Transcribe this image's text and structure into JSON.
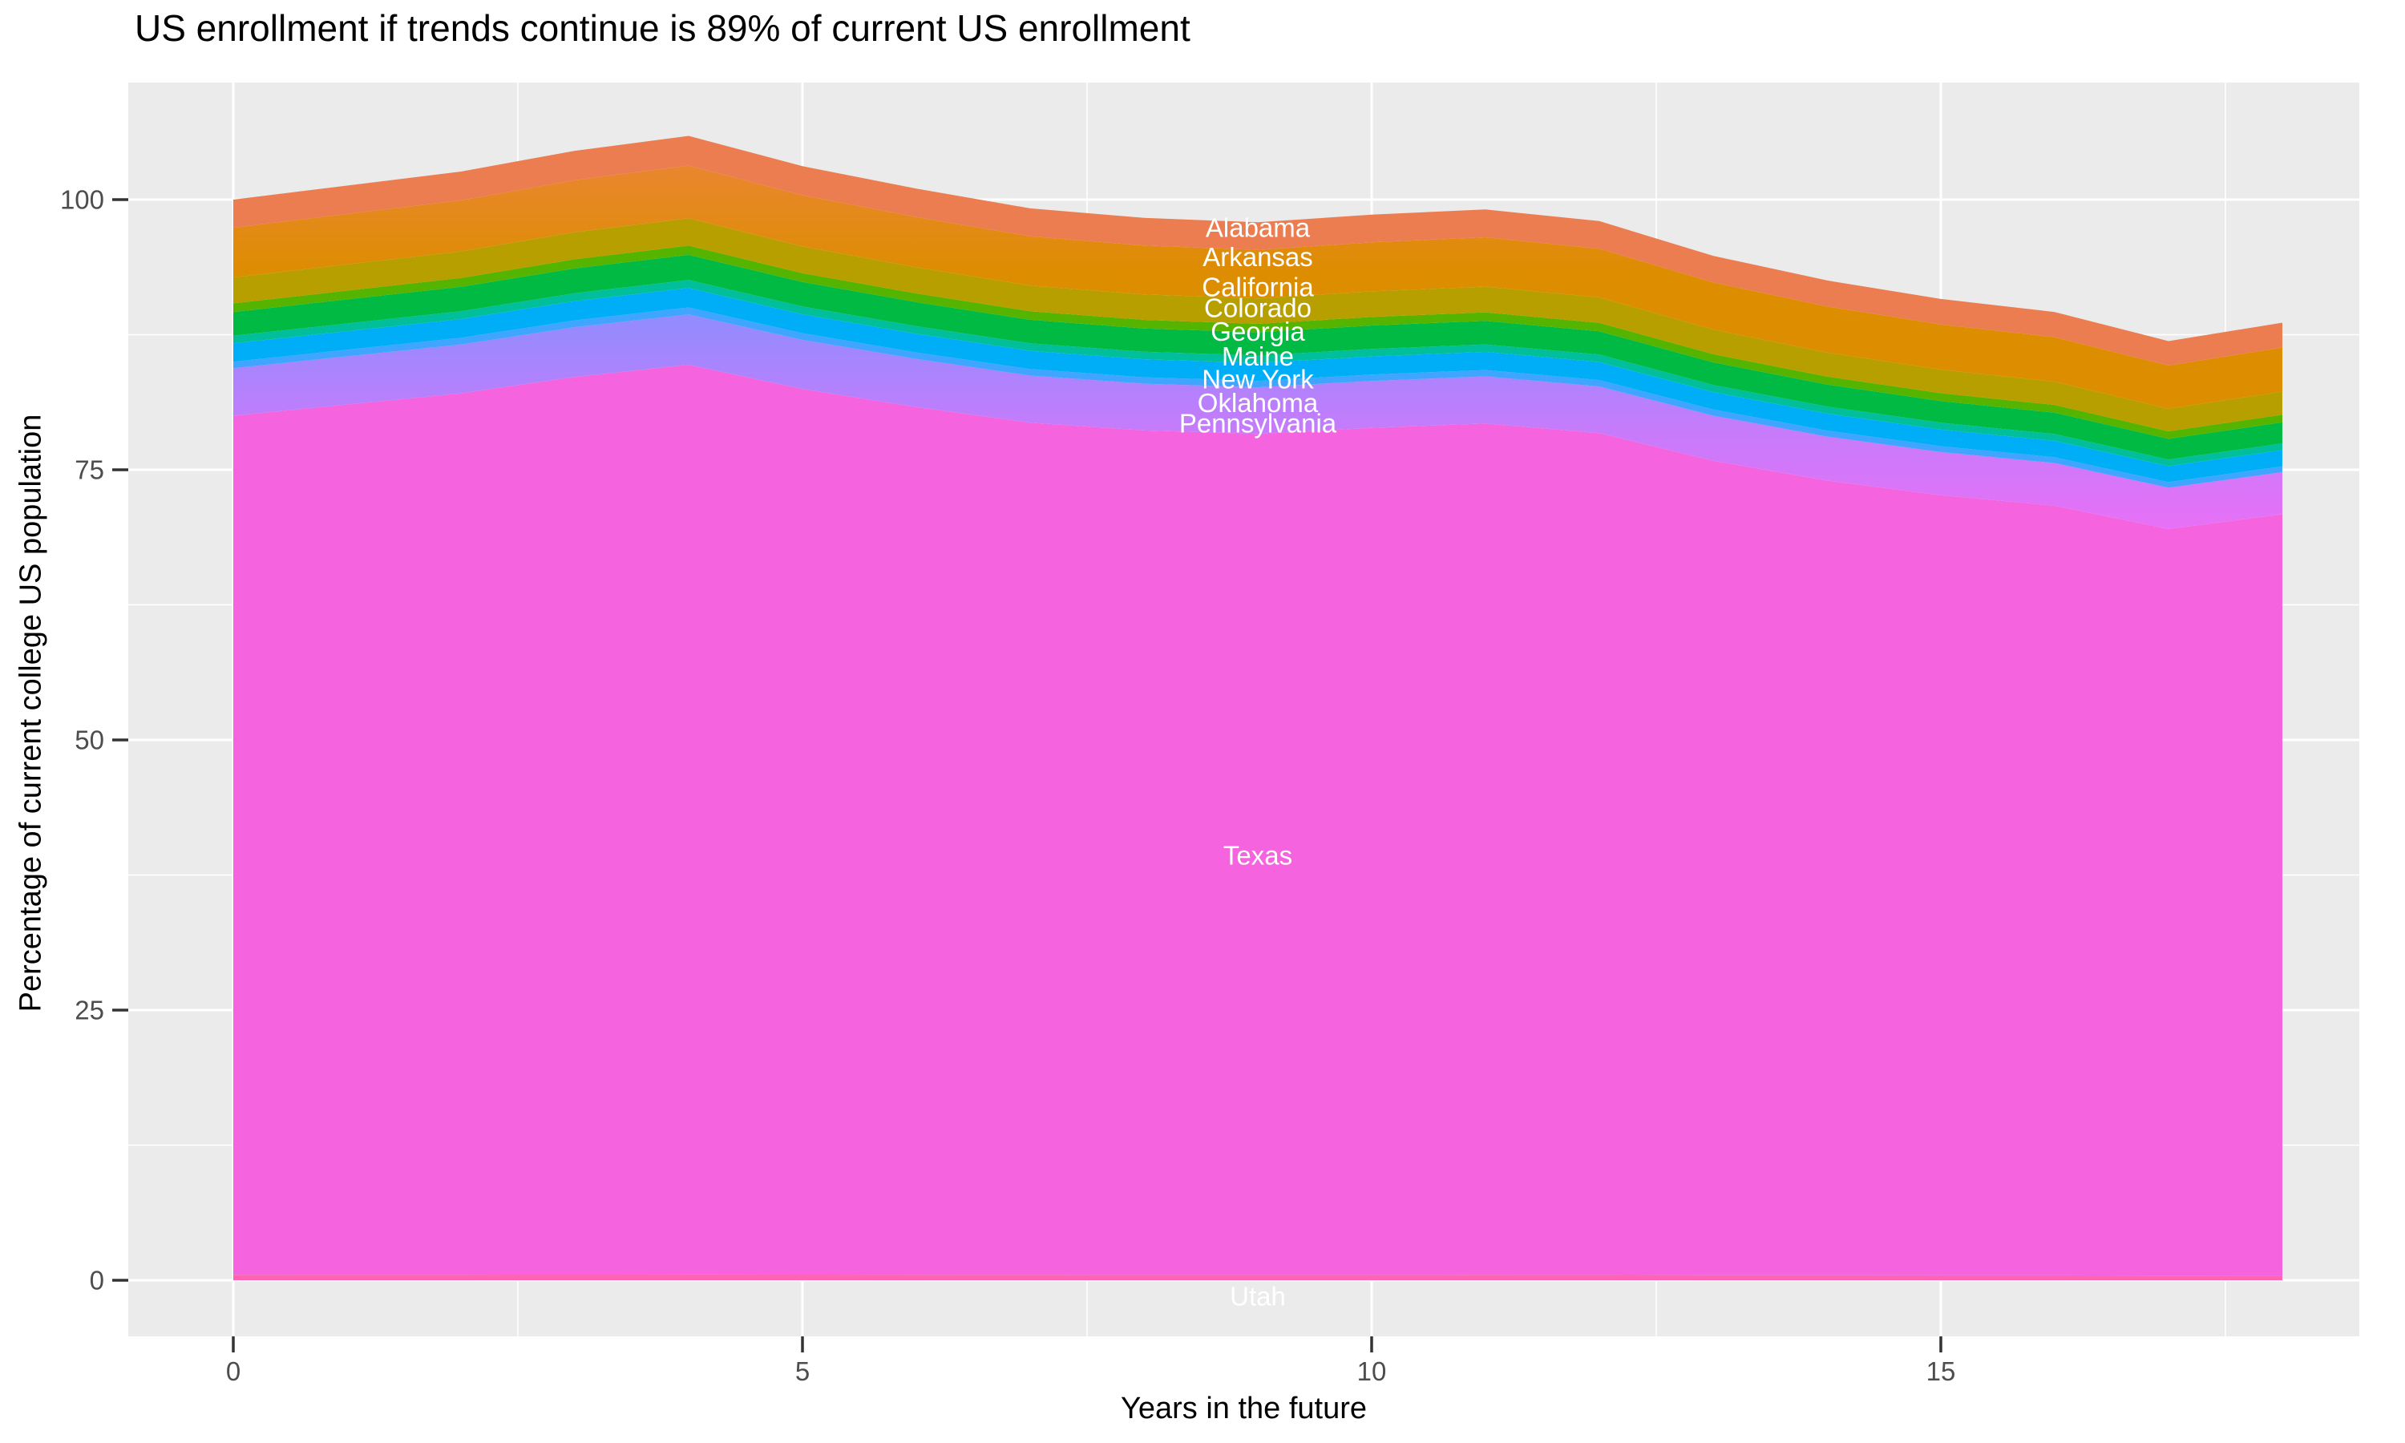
{
  "title": "US enrollment if trends continue is 89% of current US enrollment",
  "axes": {
    "x_title": "Years in the future",
    "y_title": "Percentage of current college US population"
  },
  "colors": {
    "panel_background": "#EBEBEB",
    "gridline": "#FFFFFF",
    "tick_mark": "#333333",
    "axis_text": "#4D4D4D",
    "title_text": "#000000",
    "state_label_text": "#FFFFFF"
  },
  "chart_data": {
    "type": "area",
    "stacked": true,
    "title": "US enrollment if trends continue is 89% of current US enrollment",
    "xlabel": "Years in the future",
    "ylabel": "Percentage of current college US population",
    "x": [
      0,
      1,
      2,
      3,
      4,
      5,
      6,
      7,
      8,
      9,
      10,
      11,
      12,
      13,
      14,
      15,
      16,
      17,
      18
    ],
    "x_ticks": [
      0,
      5,
      10,
      15
    ],
    "x_tick_labels": [
      "0",
      "5",
      "10",
      "15"
    ],
    "x_minor_ticks": [
      2.5,
      7.5,
      12.5,
      17.5
    ],
    "y_ticks": [
      0,
      25,
      50,
      75,
      100
    ],
    "y_tick_labels": [
      "0",
      "25",
      "50",
      "75",
      "100"
    ],
    "y_minor_ticks": [
      12.5,
      37.5,
      62.5,
      87.5
    ],
    "xlim": [
      -0.92,
      18.68
    ],
    "ylim": [
      -5.2,
      110.8
    ],
    "grid": "on",
    "legend_position": "none",
    "total_pct_of_current": [
      100,
      101.3,
      102.6,
      104.5,
      105.9,
      103.1,
      101.0,
      99.2,
      98.3,
      97.9,
      98.6,
      99.1,
      98.0,
      94.8,
      92.5,
      90.8,
      89.6,
      86.9,
      88.6
    ],
    "stack_order_bottom_to_top": [
      "Utah",
      "Texas",
      "Pennsylvania",
      "Oklahoma",
      "New York",
      "Maine",
      "Georgia",
      "Colorado",
      "California",
      "Arkansas",
      "Alabama"
    ],
    "series": [
      {
        "name": "Alabama",
        "share_pct": 2.6,
        "fill": {
          "type": "solid",
          "color": "#EB7D50"
        },
        "values": [
          2.6,
          2.63,
          2.67,
          2.72,
          2.75,
          2.68,
          2.63,
          2.58,
          2.56,
          2.55,
          2.56,
          2.58,
          2.55,
          2.46,
          2.41,
          2.36,
          2.33,
          2.26,
          2.3
        ]
      },
      {
        "name": "Arkansas",
        "share_pct": 4.6,
        "fill": {
          "type": "gradient",
          "stops": [
            [
              "0%",
              "#E9862F"
            ],
            [
              "45%",
              "#DD8D00"
            ],
            [
              "100%",
              "#DC8D00"
            ]
          ]
        },
        "values": [
          4.6,
          4.66,
          4.72,
          4.81,
          4.87,
          4.74,
          4.65,
          4.56,
          4.52,
          4.5,
          4.54,
          4.56,
          4.51,
          4.36,
          4.26,
          4.18,
          4.12,
          4.0,
          4.08
        ]
      },
      {
        "name": "California",
        "share_pct": 2.4,
        "fill": {
          "type": "solid",
          "color": "#B79F00"
        },
        "values": [
          2.4,
          2.43,
          2.46,
          2.51,
          2.54,
          2.47,
          2.42,
          2.38,
          2.36,
          2.35,
          2.37,
          2.38,
          2.35,
          2.28,
          2.22,
          2.18,
          2.15,
          2.09,
          2.13
        ]
      },
      {
        "name": "Colorado",
        "share_pct": 0.8,
        "fill": {
          "type": "solid",
          "color": "#55B400"
        },
        "values": [
          0.8,
          0.81,
          0.82,
          0.84,
          0.85,
          0.82,
          0.81,
          0.79,
          0.79,
          0.78,
          0.79,
          0.79,
          0.78,
          0.76,
          0.74,
          0.73,
          0.72,
          0.7,
          0.71
        ]
      },
      {
        "name": "Georgia",
        "share_pct": 2.2,
        "fill": {
          "type": "solid",
          "color": "#00BA43"
        },
        "values": [
          2.2,
          2.23,
          2.26,
          2.3,
          2.33,
          2.27,
          2.22,
          2.18,
          2.16,
          2.15,
          2.17,
          2.18,
          2.16,
          2.09,
          2.04,
          2.0,
          1.97,
          1.91,
          1.95
        ]
      },
      {
        "name": "Maine",
        "share_pct": 0.7,
        "fill": {
          "type": "solid",
          "color": "#00BF9A"
        },
        "values": [
          0.7,
          0.71,
          0.72,
          0.73,
          0.74,
          0.72,
          0.71,
          0.69,
          0.69,
          0.69,
          0.69,
          0.69,
          0.69,
          0.66,
          0.65,
          0.64,
          0.63,
          0.61,
          0.62
        ]
      },
      {
        "name": "New York",
        "share_pct": 1.7,
        "fill": {
          "type": "solid",
          "color": "#00AEF8"
        },
        "values": [
          1.7,
          1.72,
          1.74,
          1.78,
          1.8,
          1.75,
          1.72,
          1.69,
          1.67,
          1.66,
          1.68,
          1.68,
          1.67,
          1.61,
          1.57,
          1.54,
          1.52,
          1.48,
          1.51
        ]
      },
      {
        "name": "Oklahoma",
        "share_pct": 0.6,
        "fill": {
          "type": "solid",
          "color": "#3FA5FF"
        },
        "values": [
          0.6,
          0.61,
          0.62,
          0.63,
          0.64,
          0.62,
          0.61,
          0.6,
          0.59,
          0.59,
          0.59,
          0.59,
          0.59,
          0.57,
          0.56,
          0.54,
          0.54,
          0.52,
          0.53
        ]
      },
      {
        "name": "Pennsylvania",
        "share_pct": 4.4,
        "fill": {
          "type": "gradient",
          "stops": [
            [
              "0%",
              "#918CFF"
            ],
            [
              "55%",
              "#C77BFB"
            ],
            [
              "100%",
              "#E770F6"
            ]
          ]
        },
        "values": [
          4.4,
          4.46,
          4.51,
          4.6,
          4.66,
          4.54,
          4.44,
          4.36,
          4.33,
          4.31,
          4.34,
          4.36,
          4.31,
          4.17,
          4.07,
          4.0,
          3.94,
          3.82,
          3.9
        ]
      },
      {
        "name": "Texas",
        "share_pct": 79.5,
        "fill": {
          "type": "solid",
          "color": "#F564DE"
        },
        "values": [
          79.5,
          80.53,
          81.57,
          83.08,
          84.19,
          81.96,
          80.3,
          78.86,
          78.15,
          77.83,
          78.39,
          78.78,
          77.91,
          75.37,
          73.54,
          72.19,
          71.23,
          69.09,
          70.44
        ]
      },
      {
        "name": "Utah",
        "share_pct": 0.5,
        "fill": {
          "type": "solid",
          "color": "#FF64B4"
        },
        "values": [
          0.5,
          0.51,
          0.51,
          0.52,
          0.53,
          0.52,
          0.51,
          0.5,
          0.49,
          0.49,
          0.49,
          0.5,
          0.49,
          0.47,
          0.46,
          0.45,
          0.45,
          0.43,
          0.44
        ]
      }
    ],
    "labels": [
      {
        "text": "Alabama",
        "x": 9.0,
        "y": 97.4
      },
      {
        "text": "Arkansas",
        "x": 9.0,
        "y": 94.7
      },
      {
        "text": "California",
        "x": 9.0,
        "y": 91.9
      },
      {
        "text": "Colorado",
        "x": 9.0,
        "y": 90.0
      },
      {
        "text": "Georgia",
        "x": 9.0,
        "y": 87.8
      },
      {
        "text": "Maine",
        "x": 9.0,
        "y": 85.5
      },
      {
        "text": "New York",
        "x": 9.0,
        "y": 83.4
      },
      {
        "text": "Oklahoma",
        "x": 9.0,
        "y": 81.2
      },
      {
        "text": "Pennsylvania",
        "x": 9.0,
        "y": 79.3
      },
      {
        "text": "Texas",
        "x": 9.0,
        "y": 39.3
      },
      {
        "text": "Utah",
        "x": 9.0,
        "y": -1.5
      }
    ]
  }
}
